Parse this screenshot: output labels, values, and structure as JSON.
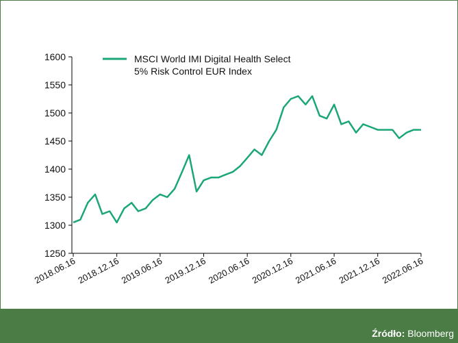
{
  "chart_data": {
    "type": "line",
    "x": [
      "2018.06.16",
      "2018.07.16",
      "2018.08.16",
      "2018.09.16",
      "2018.10.16",
      "2018.11.16",
      "2018.12.16",
      "2019.01.16",
      "2019.02.16",
      "2019.03.16",
      "2019.04.16",
      "2019.05.16",
      "2019.06.16",
      "2019.07.16",
      "2019.08.16",
      "2019.09.16",
      "2019.10.16",
      "2019.11.16",
      "2019.12.16",
      "2020.01.16",
      "2020.02.16",
      "2020.03.16",
      "2020.04.16",
      "2020.05.16",
      "2020.06.16",
      "2020.07.16",
      "2020.08.16",
      "2020.09.16",
      "2020.10.16",
      "2020.11.16",
      "2020.12.16",
      "2021.01.16",
      "2021.02.16",
      "2021.03.16",
      "2021.04.16",
      "2021.05.16",
      "2021.06.16",
      "2021.07.16",
      "2021.08.16",
      "2021.09.16",
      "2021.10.16",
      "2021.11.16",
      "2021.12.16",
      "2022.01.16",
      "2022.02.16",
      "2022.03.16",
      "2022.04.16",
      "2022.05.16",
      "2022.06.16"
    ],
    "series": [
      {
        "name": "MSCI World IMI Digital Health Select 5% Risk Control EUR Index",
        "color": "#1aa679",
        "values": [
          1305,
          1310,
          1340,
          1355,
          1320,
          1325,
          1305,
          1330,
          1340,
          1325,
          1330,
          1345,
          1355,
          1350,
          1365,
          1395,
          1425,
          1360,
          1380,
          1385,
          1385,
          1390,
          1395,
          1405,
          1420,
          1435,
          1425,
          1450,
          1470,
          1510,
          1525,
          1530,
          1515,
          1530,
          1495,
          1490,
          1515,
          1480,
          1485,
          1465,
          1480,
          1475,
          1470,
          1470,
          1470,
          1455,
          1465,
          1470,
          1470
        ]
      }
    ],
    "xlim": [
      "2018.06.16",
      "2022.06.16"
    ],
    "xticks": [
      "2018.06.16",
      "2018.12.16",
      "2019.06.16",
      "2019.12.16",
      "2020.06.16",
      "2020.12.16",
      "2021.06.16",
      "2021.12.16",
      "2022.06.16"
    ],
    "ylim": [
      1250,
      1600
    ],
    "yticks": [
      1250,
      1300,
      1350,
      1400,
      1450,
      1500,
      1550,
      1600
    ]
  },
  "footer": {
    "source_label": "Źródło:",
    "source": "Bloomberg"
  }
}
